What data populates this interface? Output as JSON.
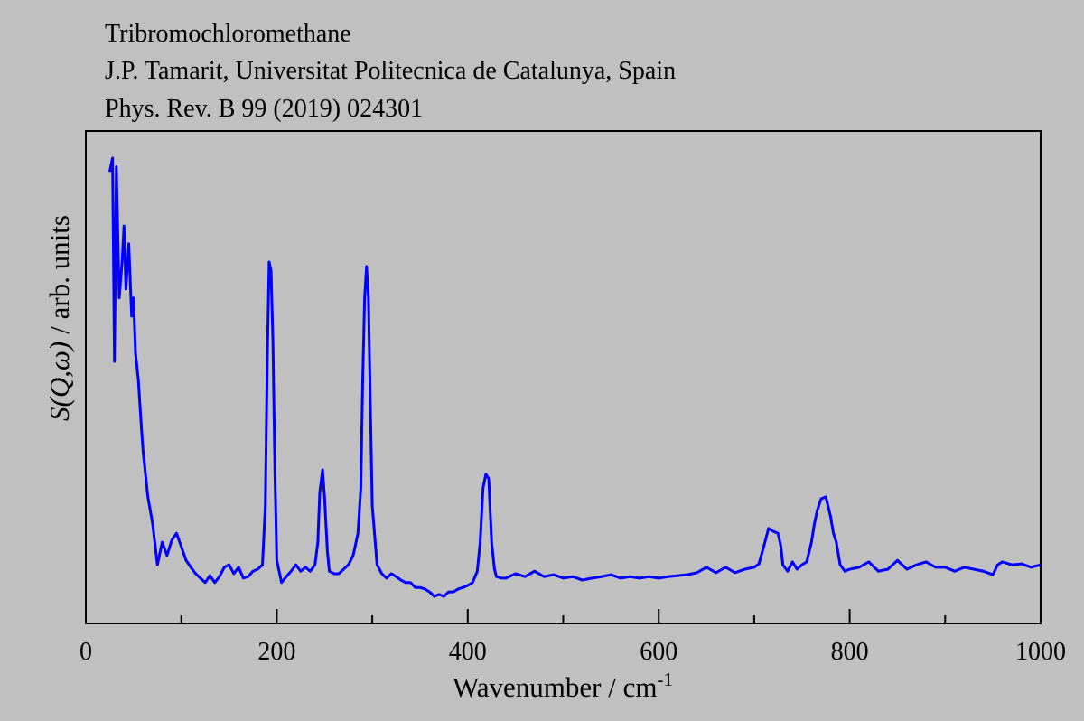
{
  "chart_data": {
    "type": "line",
    "title_lines": [
      "Tribromochloromethane",
      "J.P. Tamarit, Universitat Politecnica de Catalunya, Spain",
      "Phys. Rev. B 99 (2019) 024301"
    ],
    "xlabel": "Wavenumber / cm",
    "xlabel_superscript": "-1",
    "ylabel_italic": "S(Q,ω)",
    "ylabel": "/ arb. units",
    "xlim": [
      0,
      1000
    ],
    "xticks": [
      0,
      200,
      400,
      600,
      800,
      1000
    ],
    "ylim": [
      0,
      100
    ],
    "series": [
      {
        "color": "#0000ff",
        "x": [
          25,
          28,
          30,
          32,
          35,
          38,
          40,
          42,
          45,
          48,
          50,
          52,
          55,
          58,
          60,
          65,
          70,
          75,
          80,
          85,
          90,
          95,
          100,
          105,
          110,
          115,
          120,
          125,
          130,
          135,
          140,
          145,
          150,
          155,
          160,
          165,
          170,
          175,
          180,
          185,
          188,
          190,
          192,
          194,
          196,
          198,
          200,
          205,
          210,
          215,
          220,
          225,
          230,
          235,
          240,
          243,
          245,
          248,
          250,
          253,
          255,
          260,
          265,
          270,
          275,
          280,
          285,
          288,
          290,
          292,
          294,
          296,
          298,
          300,
          305,
          310,
          315,
          320,
          325,
          330,
          335,
          340,
          345,
          350,
          355,
          360,
          365,
          370,
          375,
          380,
          385,
          390,
          395,
          400,
          405,
          410,
          413,
          416,
          419,
          422,
          425,
          428,
          430,
          435,
          440,
          450,
          460,
          470,
          480,
          490,
          500,
          510,
          520,
          530,
          540,
          550,
          560,
          570,
          580,
          590,
          600,
          610,
          620,
          630,
          640,
          650,
          660,
          670,
          680,
          690,
          700,
          705,
          710,
          715,
          720,
          725,
          728,
          730,
          735,
          740,
          745,
          750,
          755,
          760,
          763,
          766,
          770,
          775,
          780,
          783,
          786,
          790,
          795,
          800,
          810,
          820,
          830,
          840,
          850,
          860,
          870,
          880,
          890,
          900,
          910,
          920,
          930,
          940,
          950,
          955,
          960,
          970,
          980,
          990,
          1000
        ],
        "values": [
          91.7,
          94.5,
          53.2,
          92.7,
          66.1,
          73.4,
          80.7,
          67.9,
          77.1,
          62.4,
          66.1,
          55.0,
          49.5,
          40.4,
          34.9,
          25.7,
          20.2,
          11.9,
          16.5,
          13.8,
          16.9,
          18.3,
          15.6,
          12.8,
          11.4,
          10.1,
          9.2,
          8.3,
          9.7,
          8.3,
          9.5,
          11.4,
          11.9,
          10.1,
          11.4,
          9.2,
          9.5,
          10.6,
          11.0,
          11.9,
          23.9,
          53.2,
          73.4,
          71.6,
          56.9,
          31.2,
          12.8,
          8.3,
          9.5,
          10.6,
          11.9,
          10.6,
          11.4,
          10.6,
          11.9,
          16.5,
          26.6,
          31.2,
          25.7,
          14.7,
          10.6,
          10.1,
          10.1,
          11.0,
          11.9,
          13.8,
          18.3,
          27.5,
          49.5,
          66.1,
          72.5,
          66.1,
          44.0,
          23.9,
          11.9,
          10.1,
          9.2,
          10.1,
          9.5,
          8.8,
          8.3,
          8.3,
          7.3,
          7.3,
          7.0,
          6.4,
          5.5,
          5.9,
          5.5,
          6.4,
          6.4,
          7.0,
          7.3,
          7.7,
          8.3,
          10.6,
          16.5,
          27.5,
          30.3,
          29.4,
          16.5,
          11.0,
          9.5,
          9.2,
          9.2,
          10.1,
          9.5,
          10.6,
          9.5,
          9.9,
          9.2,
          9.5,
          8.8,
          9.2,
          9.5,
          9.9,
          9.2,
          9.5,
          9.2,
          9.5,
          9.2,
          9.5,
          9.7,
          9.9,
          10.3,
          11.4,
          10.3,
          11.4,
          10.3,
          11.0,
          11.4,
          12.1,
          15.6,
          19.3,
          18.7,
          18.3,
          15.6,
          11.9,
          10.6,
          12.5,
          11.0,
          11.9,
          12.5,
          16.5,
          20.2,
          22.9,
          25.3,
          25.7,
          21.7,
          18.3,
          16.5,
          11.9,
          10.6,
          11.0,
          11.4,
          12.5,
          10.6,
          11.0,
          12.8,
          11.0,
          11.9,
          12.5,
          11.4,
          11.4,
          10.6,
          11.4,
          11.0,
          10.6,
          9.9,
          11.9,
          12.5,
          11.9,
          12.1,
          11.4,
          11.9
        ]
      }
    ]
  }
}
